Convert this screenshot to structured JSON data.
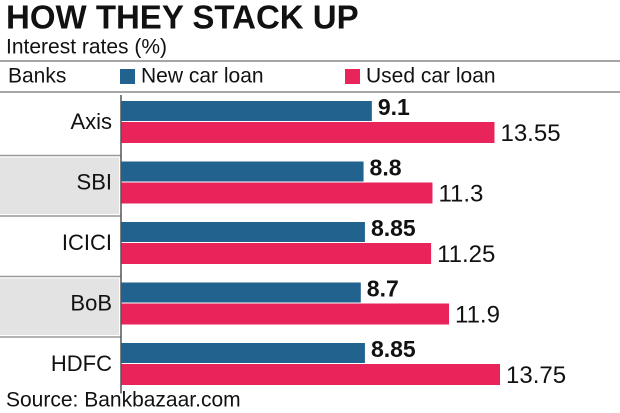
{
  "chart_data": {
    "type": "bar",
    "orientation": "horizontal",
    "title": "HOW THEY STACK UP",
    "subtitle": "Interest rates (%)",
    "category_header": "Banks",
    "categories": [
      "Axis",
      "SBI",
      "ICICI",
      "BoB",
      "HDFC"
    ],
    "series": [
      {
        "name": "New car loan",
        "color": "#22628f",
        "values": [
          9.1,
          8.8,
          8.85,
          8.7,
          8.85
        ]
      },
      {
        "name": "Used car loan",
        "color": "#e8245a",
        "values": [
          13.55,
          11.3,
          11.25,
          11.9,
          13.75
        ]
      }
    ],
    "source": "Source: Bankbazaar.com"
  }
}
